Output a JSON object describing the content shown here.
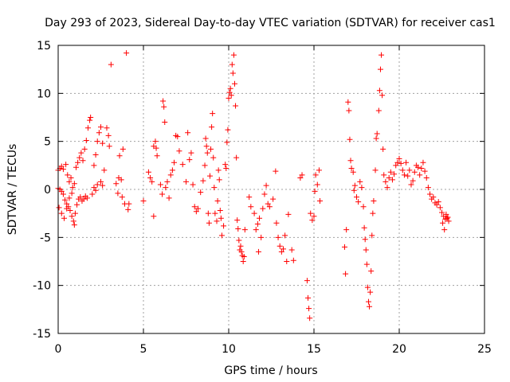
{
  "chart_data": {
    "type": "scatter",
    "title": "Day 293 of 2023, Sidereal Day-to-day VTEC variation (SDTVAR) for receiver cas1",
    "xlabel": "GPS time / hours",
    "ylabel": "SDTVAR / TECUs",
    "xlim": [
      0,
      25
    ],
    "ylim": [
      -15,
      15
    ],
    "xticks": [
      0,
      5,
      10,
      15,
      20,
      25
    ],
    "yticks": [
      -15,
      -10,
      -5,
      0,
      5,
      10,
      15
    ],
    "xtick_labels": [
      "0",
      "5",
      "10",
      "15",
      "20",
      "25"
    ],
    "ytick_labels": [
      "-15",
      "-10",
      "-5",
      "0",
      "5",
      "10",
      "15"
    ],
    "grid": true,
    "marker": "+",
    "color": "#ff0000",
    "series": [
      {
        "name": "SDTVAR",
        "points": [
          [
            0.0,
            2.0
          ],
          [
            0.1,
            2.2
          ],
          [
            0.2,
            2.4
          ],
          [
            0.3,
            2.1
          ],
          [
            0.45,
            2.6
          ],
          [
            0.55,
            1.5
          ],
          [
            0.65,
            0.8
          ],
          [
            0.75,
            1.2
          ],
          [
            0.85,
            0.2
          ],
          [
            0.95,
            0.6
          ],
          [
            1.05,
            2.3
          ],
          [
            1.15,
            2.8
          ],
          [
            1.25,
            3.3
          ],
          [
            1.35,
            3.8
          ],
          [
            1.45,
            3.0
          ],
          [
            1.55,
            4.2
          ],
          [
            1.65,
            5.1
          ],
          [
            1.75,
            6.4
          ],
          [
            1.85,
            7.2
          ],
          [
            1.9,
            7.5
          ],
          [
            0.0,
            0.1
          ],
          [
            0.1,
            0.0
          ],
          [
            0.2,
            -0.2
          ],
          [
            0.3,
            -0.5
          ],
          [
            0.4,
            -1.1
          ],
          [
            0.5,
            -1.5
          ],
          [
            0.6,
            -1.8
          ],
          [
            0.7,
            -2.2
          ],
          [
            0.8,
            -2.8
          ],
          [
            0.9,
            -3.3
          ],
          [
            1.0,
            -2.5
          ],
          [
            1.1,
            -1.6
          ],
          [
            1.2,
            -1.0
          ],
          [
            1.3,
            -0.8
          ],
          [
            1.4,
            -1.2
          ],
          [
            1.5,
            -1.0
          ],
          [
            1.6,
            -0.7
          ],
          [
            1.7,
            -0.9
          ],
          [
            0.05,
            -1.9
          ],
          [
            0.2,
            -2.5
          ],
          [
            0.35,
            -3.0
          ],
          [
            0.5,
            -2.0
          ],
          [
            0.65,
            -0.9
          ],
          [
            0.8,
            -0.4
          ],
          [
            0.95,
            -3.7
          ],
          [
            2.0,
            -0.5
          ],
          [
            2.1,
            0.2
          ],
          [
            2.2,
            -0.1
          ],
          [
            2.3,
            0.5
          ],
          [
            2.5,
            0.8
          ],
          [
            2.6,
            0.4
          ],
          [
            2.1,
            2.5
          ],
          [
            2.2,
            3.6
          ],
          [
            2.3,
            5.0
          ],
          [
            2.4,
            5.9
          ],
          [
            2.5,
            6.5
          ],
          [
            2.6,
            4.8
          ],
          [
            2.7,
            2.0
          ],
          [
            2.85,
            6.4
          ],
          [
            2.95,
            5.6
          ],
          [
            3.0,
            4.5
          ],
          [
            3.1,
            13.0
          ],
          [
            4.0,
            14.2
          ],
          [
            3.4,
            0.6
          ],
          [
            3.5,
            -0.4
          ],
          [
            3.55,
            1.2
          ],
          [
            3.6,
            3.5
          ],
          [
            3.7,
            1.0
          ],
          [
            3.75,
            -0.8
          ],
          [
            3.8,
            4.2
          ],
          [
            3.9,
            -1.5
          ],
          [
            4.1,
            -2.1
          ],
          [
            4.15,
            -1.5
          ],
          [
            5.0,
            -1.2
          ],
          [
            5.3,
            1.8
          ],
          [
            5.4,
            1.2
          ],
          [
            5.5,
            0.8
          ],
          [
            5.6,
            4.5
          ],
          [
            5.7,
            5.0
          ],
          [
            5.75,
            4.3
          ],
          [
            5.8,
            3.5
          ],
          [
            5.6,
            -2.8
          ],
          [
            6.0,
            0.5
          ],
          [
            6.1,
            -0.5
          ],
          [
            6.15,
            9.2
          ],
          [
            6.2,
            8.6
          ],
          [
            6.25,
            7.0
          ],
          [
            6.3,
            0.2
          ],
          [
            6.4,
            0.8
          ],
          [
            6.5,
            -0.9
          ],
          [
            6.6,
            1.5
          ],
          [
            6.7,
            2.0
          ],
          [
            6.8,
            2.8
          ],
          [
            6.9,
            5.6
          ],
          [
            7.0,
            5.5
          ],
          [
            7.1,
            4.0
          ],
          [
            7.3,
            2.6
          ],
          [
            7.5,
            0.8
          ],
          [
            7.6,
            5.9
          ],
          [
            7.7,
            3.1
          ],
          [
            7.8,
            3.8
          ],
          [
            7.9,
            0.5
          ],
          [
            8.0,
            -1.8
          ],
          [
            8.1,
            -2.3
          ],
          [
            8.2,
            -2.0
          ],
          [
            8.35,
            -0.3
          ],
          [
            8.5,
            0.9
          ],
          [
            8.6,
            2.5
          ],
          [
            8.65,
            5.3
          ],
          [
            8.7,
            4.5
          ],
          [
            8.75,
            3.8
          ],
          [
            8.8,
            -2.5
          ],
          [
            8.85,
            -3.5
          ],
          [
            8.9,
            1.4
          ],
          [
            8.95,
            4.2
          ],
          [
            9.0,
            6.5
          ],
          [
            9.05,
            7.9
          ],
          [
            9.1,
            3.3
          ],
          [
            9.15,
            0.2
          ],
          [
            9.2,
            -2.5
          ],
          [
            9.3,
            -3.3
          ],
          [
            9.35,
            -1.2
          ],
          [
            9.4,
            2.0
          ],
          [
            9.45,
            1.0
          ],
          [
            9.5,
            -2.2
          ],
          [
            9.55,
            -3.0
          ],
          [
            9.6,
            -4.8
          ],
          [
            9.7,
            -3.8
          ],
          [
            9.8,
            2.6
          ],
          [
            9.85,
            2.2
          ],
          [
            9.9,
            4.9
          ],
          [
            9.95,
            6.2
          ],
          [
            10.0,
            9.5
          ],
          [
            10.05,
            10.1
          ],
          [
            10.1,
            10.5
          ],
          [
            10.15,
            9.8
          ],
          [
            10.2,
            13.0
          ],
          [
            10.25,
            12.1
          ],
          [
            10.3,
            14.0
          ],
          [
            10.35,
            11.0
          ],
          [
            10.4,
            8.7
          ],
          [
            10.45,
            3.3
          ],
          [
            10.5,
            -3.2
          ],
          [
            10.55,
            -4.1
          ],
          [
            10.6,
            -5.3
          ],
          [
            10.65,
            -6.3
          ],
          [
            10.7,
            -5.9
          ],
          [
            10.75,
            -6.5
          ],
          [
            10.8,
            -6.9
          ],
          [
            10.85,
            -7.5
          ],
          [
            10.9,
            -7.0
          ],
          [
            10.95,
            -4.2
          ],
          [
            11.2,
            -0.8
          ],
          [
            11.3,
            -1.8
          ],
          [
            11.5,
            -2.5
          ],
          [
            11.6,
            -4.2
          ],
          [
            11.7,
            -3.6
          ],
          [
            11.8,
            -3.0
          ],
          [
            11.9,
            -5.0
          ],
          [
            12.0,
            -2.0
          ],
          [
            12.1,
            -0.5
          ],
          [
            12.2,
            0.4
          ],
          [
            11.75,
            -6.5
          ],
          [
            12.3,
            -1.5
          ],
          [
            12.4,
            -1.8
          ],
          [
            12.6,
            -1.0
          ],
          [
            12.75,
            1.9
          ],
          [
            12.8,
            -3.5
          ],
          [
            12.9,
            -5.0
          ],
          [
            13.0,
            -5.9
          ],
          [
            13.1,
            -6.5
          ],
          [
            13.2,
            -6.2
          ],
          [
            13.3,
            -4.8
          ],
          [
            13.4,
            -7.5
          ],
          [
            13.5,
            -2.6
          ],
          [
            13.7,
            -6.3
          ],
          [
            13.8,
            -7.4
          ],
          [
            14.2,
            1.2
          ],
          [
            14.3,
            1.5
          ],
          [
            14.6,
            -9.5
          ],
          [
            14.65,
            -11.3
          ],
          [
            14.7,
            -12.4
          ],
          [
            14.75,
            -13.4
          ],
          [
            14.8,
            -2.5
          ],
          [
            14.9,
            -3.2
          ],
          [
            15.0,
            -2.8
          ],
          [
            15.05,
            -0.2
          ],
          [
            15.1,
            1.5
          ],
          [
            15.2,
            0.5
          ],
          [
            15.3,
            2.0
          ],
          [
            15.35,
            -1.2
          ],
          [
            16.8,
            -6.0
          ],
          [
            16.85,
            -8.8
          ],
          [
            16.9,
            -4.2
          ],
          [
            17.0,
            9.1
          ],
          [
            17.05,
            8.2
          ],
          [
            17.1,
            5.2
          ],
          [
            17.15,
            3.0
          ],
          [
            17.2,
            2.2
          ],
          [
            17.3,
            1.8
          ],
          [
            17.35,
            -0.1
          ],
          [
            17.4,
            0.4
          ],
          [
            17.5,
            -0.8
          ],
          [
            17.6,
            -1.3
          ],
          [
            17.7,
            0.8
          ],
          [
            17.8,
            0.2
          ],
          [
            17.9,
            -1.8
          ],
          [
            17.95,
            -4.0
          ],
          [
            18.0,
            -5.2
          ],
          [
            18.05,
            -6.3
          ],
          [
            18.1,
            -7.8
          ],
          [
            18.15,
            -10.2
          ],
          [
            18.2,
            -11.7
          ],
          [
            18.25,
            -12.2
          ],
          [
            18.3,
            -10.7
          ],
          [
            18.35,
            -8.5
          ],
          [
            18.4,
            -4.8
          ],
          [
            18.45,
            -2.5
          ],
          [
            18.5,
            -1.2
          ],
          [
            18.6,
            2.0
          ],
          [
            18.65,
            5.3
          ],
          [
            18.7,
            5.8
          ],
          [
            18.8,
            8.2
          ],
          [
            18.85,
            10.3
          ],
          [
            18.9,
            12.5
          ],
          [
            18.95,
            14.0
          ],
          [
            19.0,
            9.8
          ],
          [
            19.05,
            4.2
          ],
          [
            19.1,
            1.5
          ],
          [
            19.2,
            0.8
          ],
          [
            19.3,
            0.2
          ],
          [
            19.4,
            1.2
          ],
          [
            19.5,
            1.8
          ],
          [
            19.6,
            1.0
          ],
          [
            19.7,
            1.6
          ],
          [
            19.8,
            2.5
          ],
          [
            19.9,
            2.8
          ],
          [
            20.0,
            3.2
          ],
          [
            20.1,
            2.7
          ],
          [
            20.2,
            2.0
          ],
          [
            20.3,
            1.5
          ],
          [
            20.4,
            2.8
          ],
          [
            20.5,
            1.4
          ],
          [
            20.6,
            2.0
          ],
          [
            20.7,
            0.5
          ],
          [
            20.8,
            0.9
          ],
          [
            20.9,
            1.8
          ],
          [
            21.0,
            2.5
          ],
          [
            21.1,
            2.3
          ],
          [
            21.2,
            1.5
          ],
          [
            21.3,
            2.2
          ],
          [
            21.4,
            2.8
          ],
          [
            21.5,
            1.9
          ],
          [
            21.6,
            1.2
          ],
          [
            21.7,
            0.2
          ],
          [
            21.8,
            -0.5
          ],
          [
            21.9,
            -1.0
          ],
          [
            22.0,
            -0.8
          ],
          [
            22.1,
            -1.4
          ],
          [
            22.2,
            -1.6
          ],
          [
            22.3,
            -1.3
          ],
          [
            22.4,
            -1.9
          ],
          [
            22.5,
            -2.4
          ],
          [
            22.55,
            -3.5
          ],
          [
            22.6,
            -2.8
          ],
          [
            22.65,
            -4.2
          ],
          [
            22.7,
            -3.1
          ],
          [
            22.75,
            -2.6
          ],
          [
            22.8,
            -3.0
          ],
          [
            22.85,
            -2.9
          ],
          [
            22.9,
            -3.3
          ]
        ]
      }
    ]
  }
}
